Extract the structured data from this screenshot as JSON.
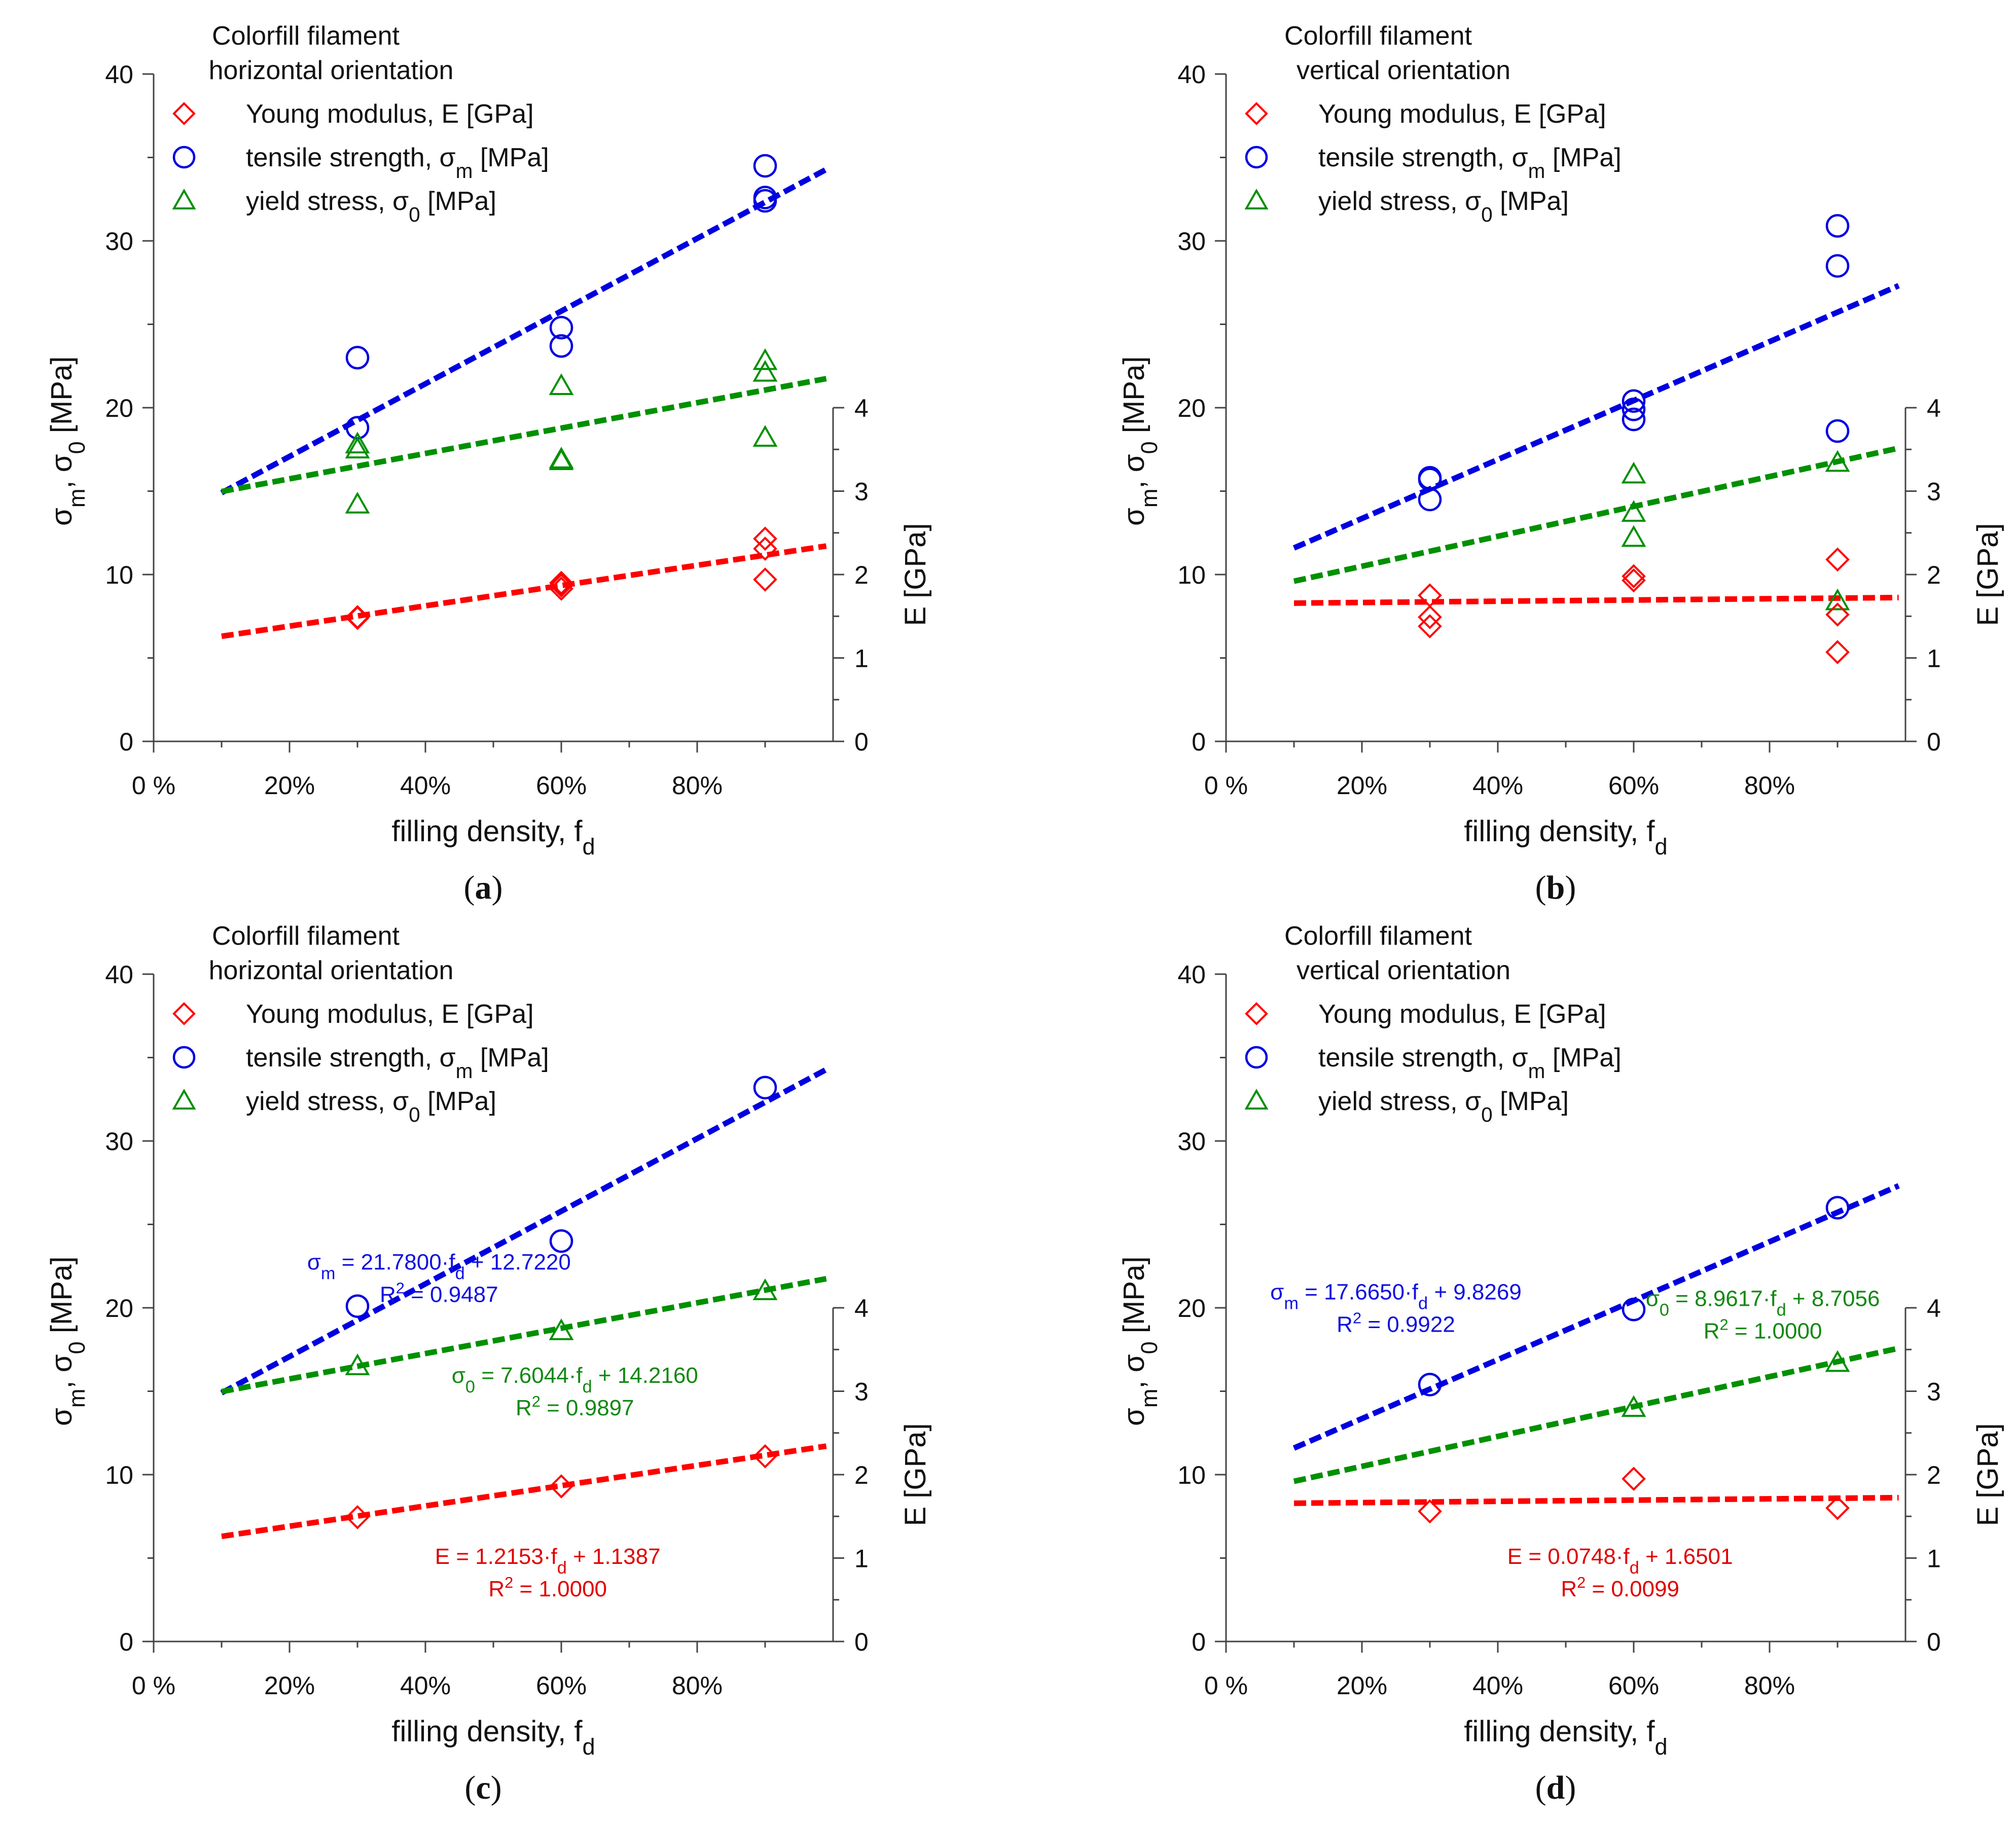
{
  "colors": {
    "E": "#ff0000",
    "sm": "#0000e0",
    "s0": "#009000",
    "eq_E": "#e00000",
    "eq_sm": "#1010e0",
    "eq_s0": "#108810",
    "axis": "#444444"
  },
  "chart_data": [
    {
      "type": "scatter",
      "panel_label": "a",
      "title_line1": "Colorfill filament",
      "title_line2": "horizontal orientation",
      "xlabel": "filling density, f",
      "xlabel_sub": "d",
      "ylabel_left": "σm, σ0 [MPa]",
      "ylabel_right": "E [GPa]",
      "xlim": [
        0,
        1
      ],
      "ylim_left": [
        0,
        40
      ],
      "ylim_right": [
        0,
        4
      ],
      "x_ticks": [
        0,
        0.2,
        0.4,
        0.6,
        0.8
      ],
      "x_tick_labels": [
        "0 %",
        "20%",
        "40%",
        "60%",
        "80%"
      ],
      "y_left_ticks": [
        0,
        10,
        20,
        30,
        40
      ],
      "y_right_ticks": [
        0,
        1,
        2,
        3,
        4
      ],
      "legend": [
        {
          "key": "E",
          "marker": "diamond",
          "label": "Young modulus, E [GPa]"
        },
        {
          "key": "sm",
          "marker": "circle",
          "label": "tensile strength, σm [MPa]"
        },
        {
          "key": "s0",
          "marker": "triangle",
          "label": "yield stress, σ0 [MPa]"
        }
      ],
      "series": [
        {
          "key": "sm",
          "axis": "left",
          "x": [
            0.3,
            0.3,
            0.6,
            0.6,
            0.9,
            0.9,
            0.9
          ],
          "y": [
            23.0,
            18.8,
            24.8,
            23.7,
            34.5,
            32.6,
            32.4
          ]
        },
        {
          "key": "s0",
          "axis": "left",
          "x": [
            0.3,
            0.3,
            0.3,
            0.6,
            0.6,
            0.6,
            0.9,
            0.9,
            0.9
          ],
          "y": [
            17.8,
            17.5,
            14.2,
            21.3,
            16.9,
            16.8,
            22.8,
            22.1,
            18.2
          ]
        },
        {
          "key": "E",
          "axis": "right",
          "x": [
            0.3,
            0.3,
            0.6,
            0.6,
            0.6,
            0.9,
            0.9,
            0.9
          ],
          "y": [
            1.49,
            1.48,
            1.9,
            1.87,
            1.83,
            2.43,
            2.31,
            1.94
          ]
        }
      ],
      "fits": [
        {
          "key": "sm",
          "axis": "left",
          "slope": 21.78,
          "intercept": 12.722,
          "x_range": [
            0.1,
            0.99
          ]
        },
        {
          "key": "s0",
          "axis": "left",
          "slope": 7.6044,
          "intercept": 14.216,
          "x_range": [
            0.1,
            0.99
          ]
        },
        {
          "key": "E",
          "axis": "right",
          "slope": 1.2153,
          "intercept": 1.1387,
          "x_range": [
            0.1,
            0.99
          ]
        }
      ],
      "annotations": []
    },
    {
      "type": "scatter",
      "panel_label": "b",
      "title_line1": "Colorfill filament",
      "title_line2": "vertical orientation",
      "xlabel": "filling density, f",
      "xlabel_sub": "d",
      "ylabel_left": "σm, σ0 [MPa]",
      "ylabel_right": "E [GPa]",
      "xlim": [
        0,
        1
      ],
      "ylim_left": [
        0,
        40
      ],
      "ylim_right": [
        0,
        4
      ],
      "x_ticks": [
        0,
        0.2,
        0.4,
        0.6,
        0.8
      ],
      "x_tick_labels": [
        "0 %",
        "20%",
        "40%",
        "60%",
        "80%"
      ],
      "y_left_ticks": [
        0,
        10,
        20,
        30,
        40
      ],
      "y_right_ticks": [
        0,
        1,
        2,
        3,
        4
      ],
      "legend": [
        {
          "key": "E",
          "marker": "diamond",
          "label": "Young modulus, E [GPa]"
        },
        {
          "key": "sm",
          "marker": "circle",
          "label": "tensile strength, σm [MPa]"
        },
        {
          "key": "s0",
          "marker": "triangle",
          "label": "yield stress, σ0 [MPa]"
        }
      ],
      "series": [
        {
          "key": "sm",
          "axis": "left",
          "x": [
            0.3,
            0.3,
            0.3,
            0.6,
            0.6,
            0.6,
            0.9,
            0.9,
            0.9
          ],
          "y": [
            15.8,
            15.7,
            14.5,
            20.4,
            19.9,
            19.3,
            30.9,
            28.5,
            18.6
          ]
        },
        {
          "key": "s0",
          "axis": "left",
          "x": [
            0.6,
            0.6,
            0.6,
            0.9,
            0.9
          ],
          "y": [
            16.0,
            13.7,
            12.2,
            16.7,
            8.4
          ]
        },
        {
          "key": "E",
          "axis": "right",
          "x": [
            0.3,
            0.3,
            0.3,
            0.6,
            0.6,
            0.9,
            0.9,
            0.9
          ],
          "y": [
            1.75,
            1.49,
            1.38,
            1.98,
            1.93,
            2.18,
            1.52,
            1.07
          ]
        }
      ],
      "fits": [
        {
          "key": "sm",
          "axis": "left",
          "slope": 17.665,
          "intercept": 9.8269,
          "x_range": [
            0.1,
            0.99
          ]
        },
        {
          "key": "s0",
          "axis": "left",
          "slope": 8.9617,
          "intercept": 8.7056,
          "x_range": [
            0.1,
            0.99
          ]
        },
        {
          "key": "E",
          "axis": "right",
          "slope": 0.0748,
          "intercept": 1.6501,
          "x_range": [
            0.1,
            0.99
          ]
        }
      ],
      "annotations": []
    },
    {
      "type": "scatter",
      "panel_label": "c",
      "title_line1": "Colorfill filament",
      "title_line2": "horizontal orientation",
      "xlabel": "filling density, f",
      "xlabel_sub": "d",
      "ylabel_left": "σm, σ0 [MPa]",
      "ylabel_right": "E [GPa]",
      "xlim": [
        0,
        1
      ],
      "ylim_left": [
        0,
        40
      ],
      "ylim_right": [
        0,
        4
      ],
      "x_ticks": [
        0,
        0.2,
        0.4,
        0.6,
        0.8
      ],
      "x_tick_labels": [
        "0 %",
        "20%",
        "40%",
        "60%",
        "80%"
      ],
      "y_left_ticks": [
        0,
        10,
        20,
        30,
        40
      ],
      "y_right_ticks": [
        0,
        1,
        2,
        3,
        4
      ],
      "legend": [
        {
          "key": "E",
          "marker": "diamond",
          "label": "Young modulus, E [GPa]"
        },
        {
          "key": "sm",
          "marker": "circle",
          "label": "tensile strength, σm [MPa]"
        },
        {
          "key": "s0",
          "marker": "triangle",
          "label": "yield stress, σ0 [MPa]"
        }
      ],
      "series": [
        {
          "key": "sm",
          "axis": "left",
          "x": [
            0.3,
            0.6,
            0.9
          ],
          "y": [
            20.1,
            24.0,
            33.2
          ]
        },
        {
          "key": "s0",
          "axis": "left",
          "x": [
            0.3,
            0.6,
            0.9
          ],
          "y": [
            16.5,
            18.6,
            21.0
          ]
        },
        {
          "key": "E",
          "axis": "right",
          "x": [
            0.3,
            0.6,
            0.9
          ],
          "y": [
            1.49,
            1.86,
            2.22
          ]
        }
      ],
      "fits": [
        {
          "key": "sm",
          "axis": "left",
          "slope": 21.78,
          "intercept": 12.722,
          "x_range": [
            0.1,
            0.99
          ]
        },
        {
          "key": "s0",
          "axis": "left",
          "slope": 7.6044,
          "intercept": 14.216,
          "x_range": [
            0.1,
            0.99
          ]
        },
        {
          "key": "E",
          "axis": "right",
          "slope": 1.2153,
          "intercept": 1.1387,
          "x_range": [
            0.1,
            0.99
          ]
        }
      ],
      "annotations": [
        {
          "key": "sm",
          "line1": "σm = 21.7800·fd + 12.7220",
          "line2": "R² = 0.9487"
        },
        {
          "key": "s0",
          "line1": "σ0 = 7.6044·fd + 14.2160",
          "line2": "R² = 0.9897"
        },
        {
          "key": "E",
          "line1": "E = 1.2153·fd + 1.1387",
          "line2": "R² = 1.0000"
        }
      ]
    },
    {
      "type": "scatter",
      "panel_label": "d",
      "title_line1": "Colorfill filament",
      "title_line2": "vertical orientation",
      "xlabel": "filling density, f",
      "xlabel_sub": "d",
      "ylabel_left": "σm, σ0 [MPa]",
      "ylabel_right": "E [GPa]",
      "xlim": [
        0,
        1
      ],
      "ylim_left": [
        0,
        40
      ],
      "ylim_right": [
        0,
        4
      ],
      "x_ticks": [
        0,
        0.2,
        0.4,
        0.6,
        0.8
      ],
      "x_tick_labels": [
        "0 %",
        "20%",
        "40%",
        "60%",
        "80%"
      ],
      "y_left_ticks": [
        0,
        10,
        20,
        30,
        40
      ],
      "y_right_ticks": [
        0,
        1,
        2,
        3,
        4
      ],
      "legend": [
        {
          "key": "E",
          "marker": "diamond",
          "label": "Young modulus, E [GPa]"
        },
        {
          "key": "sm",
          "marker": "circle",
          "label": "tensile strength, σm [MPa]"
        },
        {
          "key": "s0",
          "marker": "triangle",
          "label": "yield stress, σ0 [MPa]"
        }
      ],
      "series": [
        {
          "key": "sm",
          "axis": "left",
          "x": [
            0.3,
            0.6,
            0.9
          ],
          "y": [
            15.4,
            19.9,
            26.0
          ]
        },
        {
          "key": "s0",
          "axis": "left",
          "x": [
            0.6,
            0.9
          ],
          "y": [
            14.0,
            16.7
          ]
        },
        {
          "key": "E",
          "axis": "right",
          "x": [
            0.3,
            0.6,
            0.9
          ],
          "y": [
            1.56,
            1.95,
            1.6
          ]
        }
      ],
      "fits": [
        {
          "key": "sm",
          "axis": "left",
          "slope": 17.665,
          "intercept": 9.8269,
          "x_range": [
            0.1,
            0.99
          ]
        },
        {
          "key": "s0",
          "axis": "left",
          "slope": 8.9617,
          "intercept": 8.7056,
          "x_range": [
            0.1,
            0.99
          ]
        },
        {
          "key": "E",
          "axis": "right",
          "slope": 0.0748,
          "intercept": 1.6501,
          "x_range": [
            0.1,
            0.99
          ]
        }
      ],
      "annotations": [
        {
          "key": "sm",
          "line1": "σm = 17.6650·fd + 9.8269",
          "line2": "R² = 0.9922"
        },
        {
          "key": "s0",
          "line1": "σ0 = 8.9617·fd + 8.7056",
          "line2": "R² = 1.0000"
        },
        {
          "key": "E",
          "line1": "E = 0.0748·fd + 1.6501",
          "line2": "R² = 0.0099"
        }
      ]
    }
  ]
}
